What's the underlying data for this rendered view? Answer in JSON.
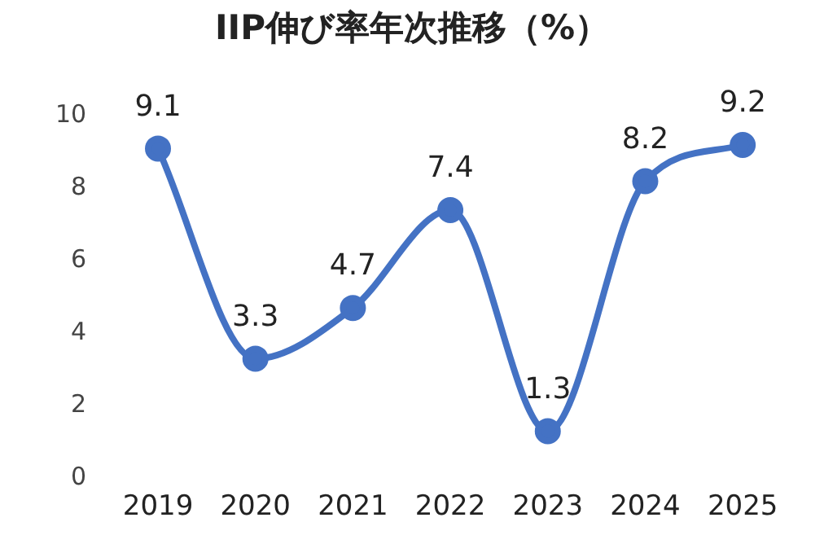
{
  "chart_data": {
    "type": "line",
    "title": "IIP伸び率年次推移（%）",
    "categories": [
      "2019",
      "2020",
      "2021",
      "2022",
      "2023",
      "2024",
      "2025"
    ],
    "series": [
      {
        "color": "#4472c4",
        "values": [
          9.1,
          3.3,
          4.7,
          7.4,
          1.3,
          8.2,
          9.2
        ]
      }
    ],
    "ylim": [
      0,
      10
    ],
    "yticks": [
      0,
      2,
      4,
      6,
      8,
      10
    ],
    "grid": false,
    "legend": false,
    "marker": "circle",
    "line_style": "solid",
    "data_labels": true
  }
}
